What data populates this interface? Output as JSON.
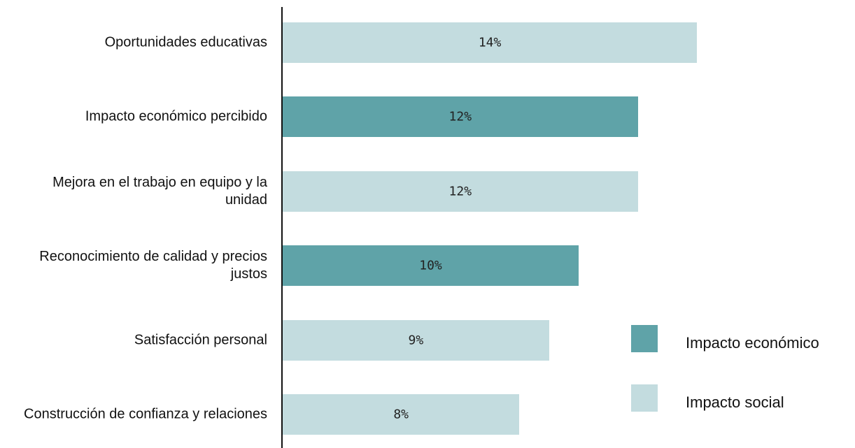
{
  "chart_data": {
    "type": "bar",
    "orientation": "horizontal",
    "categories": [
      "Oportunidades educativas",
      "Impacto económico percibido",
      "Mejora en el trabajo en equipo y la unidad",
      "Reconocimiento de calidad y precios justos",
      "Satisfacción personal",
      "Construcción de confianza y relaciones"
    ],
    "series": [
      {
        "name": "Impacto económico",
        "color": "#5fa3a8",
        "values": [
          null,
          12,
          null,
          10,
          null,
          null
        ],
        "value_labels": [
          null,
          "12%",
          null,
          "10%",
          null,
          null
        ]
      },
      {
        "name": "Impacto social",
        "color": "#c3dcdf",
        "values": [
          14,
          null,
          12,
          null,
          9,
          8
        ],
        "value_labels": [
          "14%",
          null,
          "12%",
          null,
          "9%",
          "8%"
        ]
      }
    ],
    "legend": "right"
  }
}
